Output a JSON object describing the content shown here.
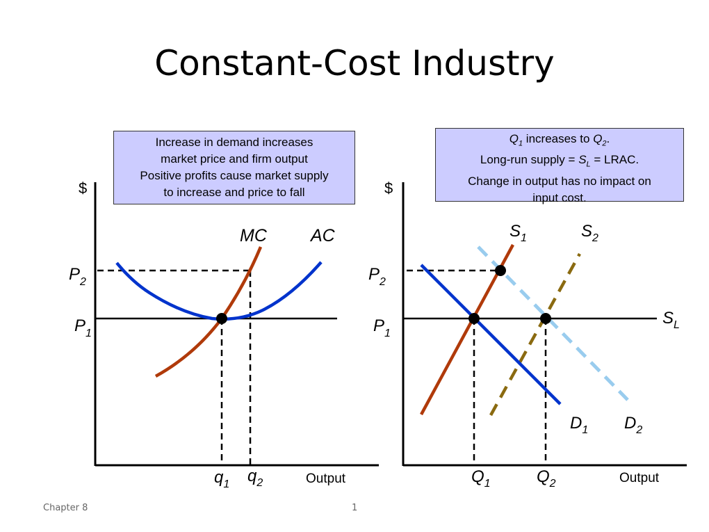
{
  "slide": {
    "title": "Constant-Cost Industry",
    "footer_left": "Chapter 8",
    "footer_right": "1"
  },
  "notes": {
    "left": [
      "Increase in demand increases",
      "market price and firm output",
      "Positive profits cause market supply",
      "to increase and price to fall"
    ],
    "right": {
      "line1_q1": "Q",
      "line1_q1_sub": "1",
      "line1_mid": " increases to ",
      "line1_q2": "Q",
      "line1_q2_sub": "2",
      "line1_end": ".",
      "line2_pre": "Long-run supply = ",
      "line2_s": "S",
      "line2_s_sub": "L",
      "line2_post": " = LRAC.",
      "line3": "Change in output has no impact on",
      "line4": "input cost."
    }
  },
  "firm_graph": {
    "y_axis_label": "$",
    "x_axis_label": "Output",
    "p2": {
      "main": "P",
      "sub": "2"
    },
    "p1": {
      "main": "P",
      "sub": "1"
    },
    "q1": {
      "main": "q",
      "sub": "1"
    },
    "q2": {
      "main": "q",
      "sub": "2"
    },
    "mc_label": "MC",
    "ac_label": "AC"
  },
  "market_graph": {
    "y_axis_label": "$",
    "x_axis_label": "Output",
    "p2": {
      "main": "P",
      "sub": "2"
    },
    "p1": {
      "main": "P",
      "sub": "1"
    },
    "q1": {
      "main": "Q",
      "sub": "1"
    },
    "q2": {
      "main": "Q",
      "sub": "2"
    },
    "s1": {
      "main": "S",
      "sub": "1"
    },
    "s2": {
      "main": "S",
      "sub": "2"
    },
    "sl": {
      "main": "S",
      "sub": "L"
    },
    "d1": {
      "main": "D",
      "sub": "1"
    },
    "d2": {
      "main": "D",
      "sub": "2"
    }
  },
  "colors": {
    "note_fill": "#ccccff",
    "ac_curve": "#0033cc",
    "mc_curve": "#b03a0a",
    "s1_curve": "#b03a0a",
    "s2_curve": "#8a6a10",
    "d1_curve": "#0033cc",
    "d2_curve": "#99ccee"
  }
}
